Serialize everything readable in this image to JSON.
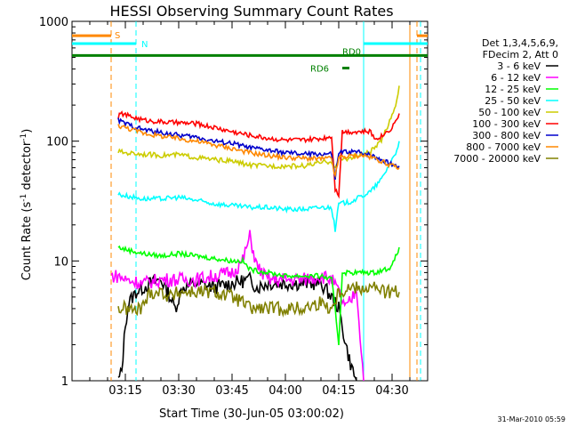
{
  "chart_data": {
    "type": "line",
    "title": "HESSI Observing Summary Count Rates",
    "xlabel": "Start Time (30-Jun-05 03:00:02)",
    "ylabel_prefix": "Count Rate (s",
    "ylabel_sup": "-1",
    "ylabel_mid": " detector",
    "ylabel_sup2": "-1",
    "ylabel_suffix": ")",
    "yscale": "log",
    "ylim": [
      1,
      1000
    ],
    "y_ticks": [
      {
        "value": 1,
        "label": "1"
      },
      {
        "value": 10,
        "label": "10"
      },
      {
        "value": 100,
        "label": "100"
      },
      {
        "value": 1000,
        "label": "1000"
      }
    ],
    "xlim_minutes": [
      0,
      100
    ],
    "x_ticks": [
      {
        "minute": 15,
        "label": "03:15"
      },
      {
        "minute": 30,
        "label": "03:30"
      },
      {
        "minute": 45,
        "label": "03:45"
      },
      {
        "minute": 60,
        "label": "04:00"
      },
      {
        "minute": 75,
        "label": "04:15"
      },
      {
        "minute": 90,
        "label": "04:30"
      }
    ],
    "legend_header": [
      "Det 1,3,4,5,6,9,",
      "FDecim 2, Att 0"
    ],
    "series": [
      {
        "name": "3 - 6 keV",
        "color": "#000000",
        "points": [
          [
            13,
            1
          ],
          [
            14,
            1.2
          ],
          [
            15,
            3
          ],
          [
            16,
            4.5
          ],
          [
            18,
            5.5
          ],
          [
            20,
            6
          ],
          [
            22,
            6.5
          ],
          [
            25,
            7
          ],
          [
            27,
            5.5
          ],
          [
            29,
            4
          ],
          [
            31,
            6
          ],
          [
            35,
            6.5
          ],
          [
            40,
            6
          ],
          [
            45,
            6.5
          ],
          [
            50,
            7
          ],
          [
            52,
            6
          ],
          [
            55,
            6.5
          ],
          [
            60,
            6.5
          ],
          [
            65,
            6.5
          ],
          [
            70,
            6.5
          ],
          [
            73,
            5
          ],
          [
            75,
            4
          ],
          [
            77,
            2
          ],
          [
            78,
            1.5
          ],
          [
            79,
            1.2
          ],
          [
            80,
            1
          ]
        ]
      },
      {
        "name": "6 - 12 keV",
        "color": "#ff00ff",
        "points": [
          [
            11,
            7.5
          ],
          [
            13,
            7.5
          ],
          [
            15,
            7
          ],
          [
            20,
            6.5
          ],
          [
            25,
            7
          ],
          [
            30,
            7
          ],
          [
            35,
            7
          ],
          [
            40,
            7.5
          ],
          [
            45,
            8
          ],
          [
            48,
            10
          ],
          [
            50,
            16
          ],
          [
            52,
            9
          ],
          [
            55,
            7
          ],
          [
            60,
            7
          ],
          [
            65,
            7
          ],
          [
            70,
            7.5
          ],
          [
            73,
            7
          ],
          [
            75,
            5.5
          ],
          [
            77,
            4
          ],
          [
            79,
            5
          ],
          [
            80,
            6
          ],
          [
            82,
            1
          ]
        ]
      },
      {
        "name": "12 - 25 keV",
        "color": "#00ff00",
        "points": [
          [
            13,
            13
          ],
          [
            15,
            12.5
          ],
          [
            20,
            11.5
          ],
          [
            25,
            11
          ],
          [
            30,
            11.5
          ],
          [
            35,
            11
          ],
          [
            40,
            10.5
          ],
          [
            45,
            10
          ],
          [
            48,
            10
          ],
          [
            50,
            8.5
          ],
          [
            55,
            8
          ],
          [
            60,
            7.5
          ],
          [
            65,
            7.5
          ],
          [
            70,
            7.5
          ],
          [
            73,
            7
          ],
          [
            74,
            4
          ],
          [
            75,
            2
          ],
          [
            76,
            8
          ],
          [
            80,
            8
          ],
          [
            85,
            8
          ],
          [
            88,
            8.5
          ],
          [
            90,
            9
          ],
          [
            92,
            13
          ]
        ]
      },
      {
        "name": "25 - 50 keV",
        "color": "#00ffff",
        "points": [
          [
            13,
            36
          ],
          [
            15,
            35
          ],
          [
            20,
            33
          ],
          [
            25,
            33
          ],
          [
            30,
            34
          ],
          [
            35,
            32
          ],
          [
            40,
            30
          ],
          [
            45,
            29
          ],
          [
            50,
            28
          ],
          [
            55,
            28
          ],
          [
            60,
            27
          ],
          [
            65,
            27
          ],
          [
            70,
            28
          ],
          [
            73,
            28
          ],
          [
            74,
            18
          ],
          [
            75,
            30
          ],
          [
            78,
            31
          ],
          [
            80,
            33
          ],
          [
            84,
            38
          ],
          [
            87,
            48
          ],
          [
            89,
            62
          ],
          [
            91,
            80
          ],
          [
            92,
            100
          ]
        ]
      },
      {
        "name": "50 - 100 keV",
        "color": "#cccc00",
        "points": [
          [
            13,
            82
          ],
          [
            15,
            80
          ],
          [
            20,
            78
          ],
          [
            25,
            76
          ],
          [
            30,
            77
          ],
          [
            35,
            73
          ],
          [
            40,
            70
          ],
          [
            45,
            68
          ],
          [
            50,
            63
          ],
          [
            55,
            62
          ],
          [
            60,
            62
          ],
          [
            65,
            62
          ],
          [
            70,
            66
          ],
          [
            73,
            68
          ],
          [
            74,
            60
          ],
          [
            75,
            70
          ],
          [
            78,
            72
          ],
          [
            80,
            75
          ],
          [
            84,
            82
          ],
          [
            87,
            100
          ],
          [
            89,
            140
          ],
          [
            91,
            200
          ],
          [
            92,
            290
          ]
        ]
      },
      {
        "name": "100 - 300 keV",
        "color": "#ff0000",
        "points": [
          [
            13,
            160
          ],
          [
            14,
            170
          ],
          [
            16,
            162
          ],
          [
            20,
            150
          ],
          [
            25,
            145
          ],
          [
            30,
            142
          ],
          [
            35,
            140
          ],
          [
            40,
            130
          ],
          [
            45,
            120
          ],
          [
            50,
            112
          ],
          [
            55,
            106
          ],
          [
            60,
            102
          ],
          [
            65,
            102
          ],
          [
            70,
            105
          ],
          [
            73,
            110
          ],
          [
            74,
            40
          ],
          [
            75,
            36
          ],
          [
            76,
            120
          ],
          [
            80,
            120
          ],
          [
            84,
            120
          ],
          [
            85,
            105
          ],
          [
            87,
            110
          ],
          [
            90,
            130
          ],
          [
            92,
            170
          ]
        ]
      },
      {
        "name": "300 - 800 keV",
        "color": "#0000cc",
        "points": [
          [
            13,
            150
          ],
          [
            15,
            140
          ],
          [
            20,
            125
          ],
          [
            25,
            118
          ],
          [
            30,
            112
          ],
          [
            35,
            108
          ],
          [
            40,
            100
          ],
          [
            45,
            96
          ],
          [
            50,
            88
          ],
          [
            55,
            84
          ],
          [
            60,
            80
          ],
          [
            65,
            78
          ],
          [
            70,
            78
          ],
          [
            73,
            78
          ],
          [
            74,
            48
          ],
          [
            75,
            80
          ],
          [
            78,
            82
          ],
          [
            82,
            80
          ],
          [
            85,
            75
          ],
          [
            88,
            68
          ],
          [
            90,
            64
          ],
          [
            92,
            62
          ]
        ]
      },
      {
        "name": "800 - 7000 keV",
        "color": "#ff8800",
        "points": [
          [
            13,
            135
          ],
          [
            15,
            130
          ],
          [
            20,
            117
          ],
          [
            25,
            110
          ],
          [
            30,
            105
          ],
          [
            35,
            100
          ],
          [
            40,
            93
          ],
          [
            45,
            87
          ],
          [
            50,
            80
          ],
          [
            55,
            76
          ],
          [
            60,
            73
          ],
          [
            65,
            72
          ],
          [
            70,
            71
          ],
          [
            73,
            72
          ],
          [
            74,
            50
          ],
          [
            75,
            73
          ],
          [
            78,
            75
          ],
          [
            82,
            76
          ],
          [
            85,
            72
          ],
          [
            88,
            66
          ],
          [
            90,
            62
          ],
          [
            92,
            60
          ]
        ]
      },
      {
        "name": "7000 - 20000 keV",
        "color": "#808000",
        "points": [
          [
            13,
            4
          ],
          [
            15,
            4
          ],
          [
            18,
            3.8
          ],
          [
            20,
            4.2
          ],
          [
            22,
            5.5
          ],
          [
            25,
            5.5
          ],
          [
            28,
            5
          ],
          [
            30,
            5.5
          ],
          [
            35,
            5.5
          ],
          [
            40,
            5.5
          ],
          [
            45,
            5
          ],
          [
            48,
            4.5
          ],
          [
            50,
            4
          ],
          [
            55,
            4
          ],
          [
            60,
            4
          ],
          [
            65,
            4
          ],
          [
            70,
            4.5
          ],
          [
            73,
            4
          ],
          [
            75,
            5.5
          ],
          [
            78,
            6
          ],
          [
            80,
            6
          ],
          [
            85,
            6
          ],
          [
            88,
            5.5
          ],
          [
            90,
            5.5
          ],
          [
            92,
            5.5
          ]
        ]
      }
    ],
    "flag_bars": [
      {
        "label": "S",
        "color": "#ff8800",
        "segments": [
          [
            0,
            11
          ],
          [
            97,
            100
          ]
        ],
        "y_fraction": 0.04
      },
      {
        "label": "N",
        "color": "#00ffff",
        "segments": [
          [
            0,
            18
          ],
          [
            82,
            100
          ]
        ],
        "y_fraction": 0.062
      },
      {
        "label": "RD0",
        "color": "#008000",
        "segments": [
          [
            0,
            100
          ]
        ],
        "y_fraction": 0.095
      },
      {
        "label": "RD6",
        "color": "#008000",
        "segments": [
          [
            76,
            78
          ]
        ],
        "y_fraction": 0.13
      }
    ],
    "vertical_markers": [
      {
        "minute": 11,
        "color": "#ff8800",
        "dashed": true
      },
      {
        "minute": 18,
        "color": "#00ffff",
        "dashed": true
      },
      {
        "minute": 97,
        "color": "#ff8800",
        "dashed": true
      },
      {
        "minute": 98,
        "color": "#00ffff",
        "dashed": true
      },
      {
        "minute": 82,
        "color": "#00ffff",
        "dashed": false
      },
      {
        "minute": 95,
        "color": "#ff8800",
        "dashed": false
      }
    ],
    "grid": false,
    "legend_position": "right"
  },
  "footer": {
    "date_stamp": "31-Mar-2010 05:59"
  }
}
